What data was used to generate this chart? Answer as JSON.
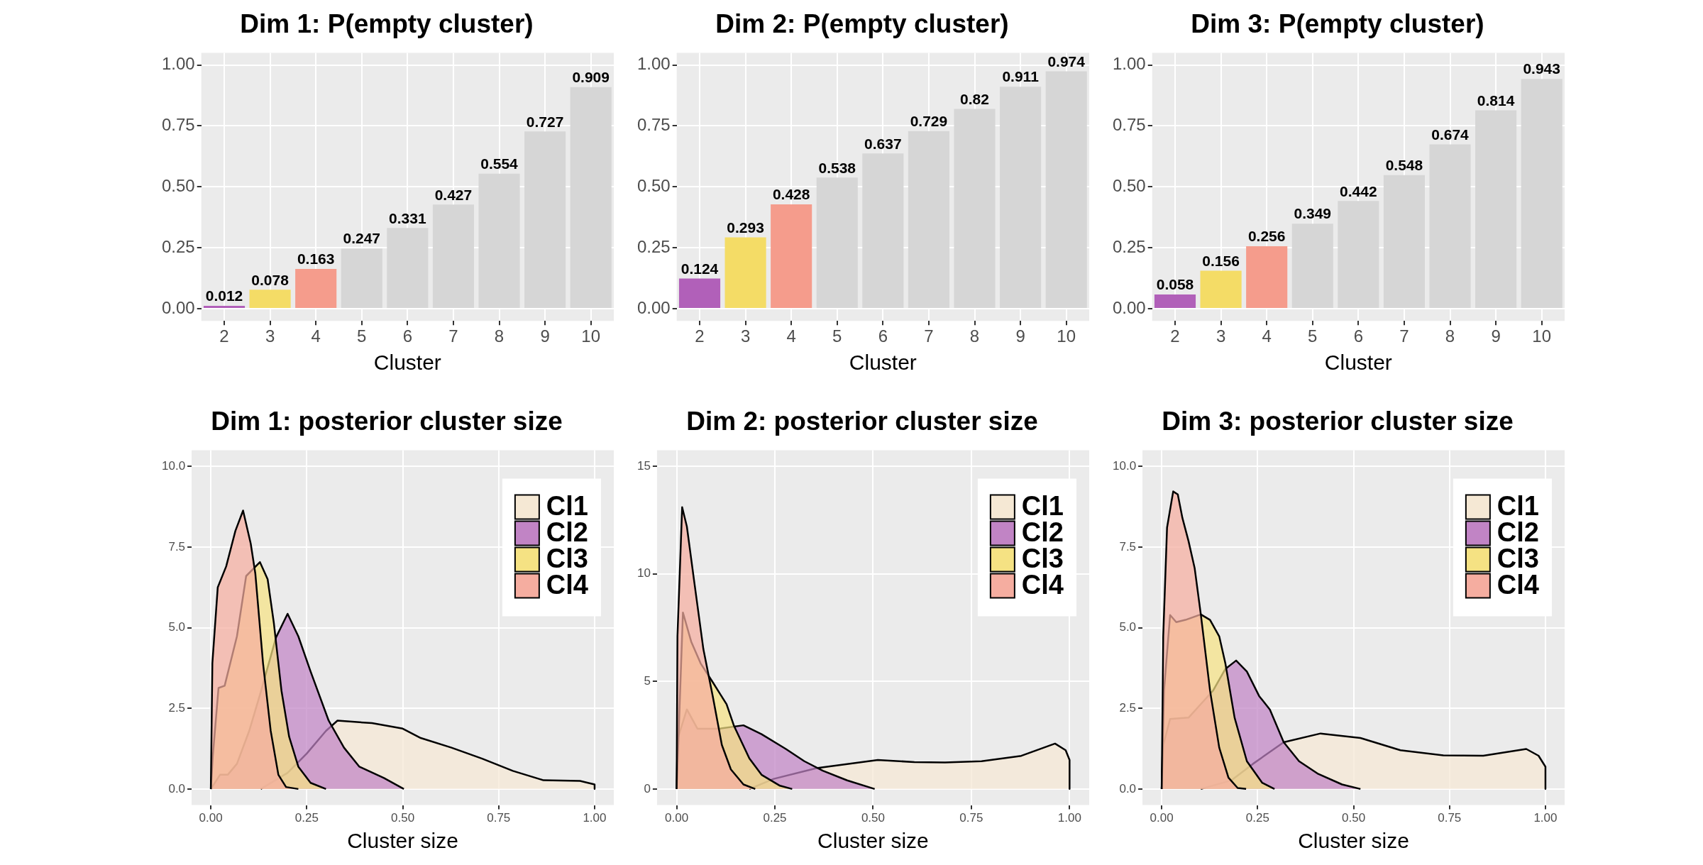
{
  "chart_data": [
    {
      "type": "bar",
      "title": "Dim 1: P(empty cluster)",
      "xlabel": "Cluster",
      "categories": [
        "2",
        "3",
        "4",
        "5",
        "6",
        "7",
        "8",
        "9",
        "10"
      ],
      "values": [
        0.012,
        0.078,
        0.163,
        0.247,
        0.331,
        0.427,
        0.554,
        0.727,
        0.909
      ],
      "colors": [
        "#b160b9",
        "#f4dc66",
        "#f59c8c",
        "#d6d6d6",
        "#d6d6d6",
        "#d6d6d6",
        "#d6d6d6",
        "#d6d6d6",
        "#d6d6d6"
      ],
      "ylim": [
        -0.05,
        1.05
      ],
      "yticks": [
        {
          "value": 0,
          "label": "0.00"
        },
        {
          "value": 0.25,
          "label": "0.25"
        },
        {
          "value": 0.5,
          "label": "0.50"
        },
        {
          "value": 0.75,
          "label": "0.75"
        },
        {
          "value": 1,
          "label": "1.00"
        }
      ],
      "grid": true,
      "data_labels": true
    },
    {
      "type": "bar",
      "title": "Dim 2: P(empty cluster)",
      "xlabel": "Cluster",
      "categories": [
        "2",
        "3",
        "4",
        "5",
        "6",
        "7",
        "8",
        "9",
        "10"
      ],
      "values": [
        0.124,
        0.293,
        0.428,
        0.538,
        0.637,
        0.729,
        0.82,
        0.911,
        0.974
      ],
      "colors": [
        "#b160b9",
        "#f4dc66",
        "#f59c8c",
        "#d6d6d6",
        "#d6d6d6",
        "#d6d6d6",
        "#d6d6d6",
        "#d6d6d6",
        "#d6d6d6"
      ],
      "ylim": [
        -0.05,
        1.05
      ],
      "yticks": [
        {
          "value": 0,
          "label": "0.00"
        },
        {
          "value": 0.25,
          "label": "0.25"
        },
        {
          "value": 0.5,
          "label": "0.50"
        },
        {
          "value": 0.75,
          "label": "0.75"
        },
        {
          "value": 1,
          "label": "1.00"
        }
      ],
      "grid": true,
      "data_labels": true
    },
    {
      "type": "bar",
      "title": "Dim 3: P(empty cluster)",
      "xlabel": "Cluster",
      "categories": [
        "2",
        "3",
        "4",
        "5",
        "6",
        "7",
        "8",
        "9",
        "10"
      ],
      "values": [
        0.058,
        0.156,
        0.256,
        0.349,
        0.442,
        0.548,
        0.674,
        0.814,
        0.943
      ],
      "colors": [
        "#b160b9",
        "#f4dc66",
        "#f59c8c",
        "#d6d6d6",
        "#d6d6d6",
        "#d6d6d6",
        "#d6d6d6",
        "#d6d6d6",
        "#d6d6d6"
      ],
      "ylim": [
        -0.05,
        1.05
      ],
      "yticks": [
        {
          "value": 0,
          "label": "0.00"
        },
        {
          "value": 0.25,
          "label": "0.25"
        },
        {
          "value": 0.5,
          "label": "0.50"
        },
        {
          "value": 0.75,
          "label": "0.75"
        },
        {
          "value": 1,
          "label": "1.00"
        }
      ],
      "grid": true,
      "data_labels": true
    },
    {
      "type": "area",
      "title": "Dim 1: posterior cluster size",
      "xlabel": "Cluster size",
      "xlim": [
        -0.05,
        1.05
      ],
      "xticks": [
        {
          "value": 0,
          "label": "0.00"
        },
        {
          "value": 0.25,
          "label": "0.25"
        },
        {
          "value": 0.5,
          "label": "0.50"
        },
        {
          "value": 0.75,
          "label": "0.75"
        },
        {
          "value": 1,
          "label": "1.00"
        }
      ],
      "ylim": [
        -0.5,
        10.5
      ],
      "yticks": [
        {
          "value": 0,
          "label": "0.0"
        },
        {
          "value": 2.5,
          "label": "2.5"
        },
        {
          "value": 5,
          "label": "5.0"
        },
        {
          "value": 7.5,
          "label": "7.5"
        },
        {
          "value": 10,
          "label": "10.0"
        }
      ],
      "grid": true,
      "legend": "top right",
      "series": [
        {
          "name": "Cl1",
          "color": "#f5e8d4",
          "x": [
            0.13,
            0.2,
            0.25,
            0.3,
            0.33,
            0.42,
            0.5,
            0.547,
            0.627,
            0.707,
            0.787,
            0.867,
            0.962,
            1.0,
            1.0
          ],
          "values": [
            0,
            0.5,
            1.1,
            1.8,
            2.12,
            2.04,
            1.87,
            1.58,
            1.28,
            0.94,
            0.56,
            0.27,
            0.25,
            0.14,
            0
          ]
        },
        {
          "name": "Cl2",
          "color": "#c184c5",
          "x": [
            0,
            0.024,
            0.044,
            0.068,
            0.1,
            0.13,
            0.17,
            0.2,
            0.228,
            0.26,
            0.307,
            0.347,
            0.387,
            0.451,
            0.503
          ],
          "values": [
            0,
            0.44,
            0.44,
            0.78,
            1.8,
            3.0,
            4.7,
            5.43,
            4.73,
            3.64,
            2.12,
            1.28,
            0.69,
            0.34,
            0
          ]
        },
        {
          "name": "Cl3",
          "color": "#f5e283",
          "x": [
            0,
            0.005,
            0.02,
            0.036,
            0.068,
            0.092,
            0.128,
            0.148,
            0.164,
            0.184,
            0.204,
            0.228,
            0.26,
            0.3
          ],
          "values": [
            0,
            1.0,
            3.13,
            3.2,
            4.73,
            6.6,
            7.03,
            6.5,
            5.16,
            3.05,
            1.62,
            0.69,
            0.19,
            0
          ]
        },
        {
          "name": "Cl4",
          "color": "#f5ada0",
          "x": [
            0,
            0.004,
            0.018,
            0.04,
            0.064,
            0.084,
            0.104,
            0.116,
            0.136,
            0.156,
            0.176,
            0.196,
            0.228
          ],
          "values": [
            0,
            3.9,
            6.25,
            6.9,
            8.0,
            8.63,
            7.6,
            6.67,
            3.9,
            1.8,
            0.44,
            0.06,
            0
          ]
        }
      ]
    },
    {
      "type": "area",
      "title": "Dim 2: posterior cluster size",
      "xlabel": "Cluster size",
      "xlim": [
        -0.05,
        1.05
      ],
      "xticks": [
        {
          "value": 0,
          "label": "0.00"
        },
        {
          "value": 0.25,
          "label": "0.25"
        },
        {
          "value": 0.5,
          "label": "0.50"
        },
        {
          "value": 0.75,
          "label": "0.75"
        },
        {
          "value": 1,
          "label": "1.00"
        }
      ],
      "ylim": [
        -0.75,
        15.75
      ],
      "yticks": [
        0,
        5,
        10,
        15
      ],
      "grid": true,
      "legend": "top right",
      "series": [
        {
          "name": "Cl1",
          "color": "#f5e8d4",
          "x": [
            0.185,
            0.247,
            0.356,
            0.434,
            0.512,
            0.605,
            0.683,
            0.776,
            0.877,
            0.963,
            0.99,
            1.0,
            1.0
          ],
          "values": [
            0,
            0.47,
            0.97,
            1.16,
            1.35,
            1.25,
            1.23,
            1.29,
            1.54,
            2.11,
            1.8,
            1.35,
            0
          ]
        },
        {
          "name": "Cl2",
          "color": "#c184c5",
          "x": [
            0,
            0.002,
            0.026,
            0.053,
            0.107,
            0.17,
            0.216,
            0.278,
            0.325,
            0.372,
            0.434,
            0.504
          ],
          "values": [
            0,
            2.3,
            3.7,
            2.8,
            2.8,
            2.96,
            2.55,
            1.86,
            1.29,
            0.85,
            0.4,
            0
          ]
        },
        {
          "name": "Cl3",
          "color": "#f5e283",
          "x": [
            0,
            0.016,
            0.037,
            0.061,
            0.092,
            0.127,
            0.146,
            0.185,
            0.216,
            0.263,
            0.294
          ],
          "values": [
            0,
            8.2,
            6.85,
            5.84,
            4.96,
            3.94,
            2.93,
            1.42,
            0.66,
            0.15,
            0
          ]
        },
        {
          "name": "Cl4",
          "color": "#f5ada0",
          "x": [
            0,
            0.002,
            0.014,
            0.026,
            0.045,
            0.068,
            0.092,
            0.115,
            0.138,
            0.17,
            0.2
          ],
          "values": [
            0,
            7.1,
            13.1,
            12.2,
            9.6,
            6.5,
            4.3,
            2.05,
            0.91,
            0.21,
            0
          ]
        }
      ]
    },
    {
      "type": "area",
      "title": "Dim 3: posterior cluster size",
      "xlabel": "Cluster size",
      "xlim": [
        -0.05,
        1.05
      ],
      "xticks": [
        {
          "value": 0,
          "label": "0.00"
        },
        {
          "value": 0.25,
          "label": "0.25"
        },
        {
          "value": 0.5,
          "label": "0.50"
        },
        {
          "value": 0.75,
          "label": "0.75"
        },
        {
          "value": 1,
          "label": "1.00"
        }
      ],
      "ylim": [
        -0.5,
        10.5
      ],
      "yticks": [
        {
          "value": 0,
          "label": "0.0"
        },
        {
          "value": 2.5,
          "label": "2.5"
        },
        {
          "value": 5,
          "label": "5.0"
        },
        {
          "value": 7.5,
          "label": "7.5"
        },
        {
          "value": 10,
          "label": "10.0"
        }
      ],
      "grid": true,
      "legend": "top right",
      "series": [
        {
          "name": "Cl1",
          "color": "#f5e8d4",
          "x": [
            0.102,
            0.182,
            0.238,
            0.318,
            0.414,
            0.518,
            0.622,
            0.734,
            0.838,
            0.95,
            0.982,
            1.0,
            1.0
          ],
          "values": [
            0,
            0.27,
            0.78,
            1.45,
            1.72,
            1.58,
            1.2,
            1.04,
            1.03,
            1.24,
            1.03,
            0.69,
            0
          ]
        },
        {
          "name": "Cl2",
          "color": "#c184c5",
          "x": [
            0,
            0.004,
            0.022,
            0.07,
            0.102,
            0.134,
            0.166,
            0.194,
            0.222,
            0.254,
            0.282,
            0.318,
            0.358,
            0.406,
            0.47,
            0.518
          ],
          "values": [
            0,
            1.36,
            2.17,
            2.21,
            2.63,
            3.05,
            3.72,
            3.98,
            3.64,
            2.88,
            2.46,
            1.45,
            0.86,
            0.48,
            0.14,
            0
          ]
        },
        {
          "name": "Cl3",
          "color": "#f5e283",
          "x": [
            0,
            0.006,
            0.022,
            0.038,
            0.062,
            0.102,
            0.126,
            0.15,
            0.166,
            0.19,
            0.222,
            0.262,
            0.294
          ],
          "values": [
            0,
            3.05,
            5.39,
            5.17,
            5.24,
            5.41,
            5.24,
            4.73,
            3.89,
            2.21,
            0.86,
            0.19,
            0
          ]
        },
        {
          "name": "Cl4",
          "color": "#f5ada0",
          "x": [
            0,
            0.004,
            0.014,
            0.03,
            0.042,
            0.054,
            0.07,
            0.086,
            0.102,
            0.126,
            0.15,
            0.174,
            0.198,
            0.22
          ],
          "values": [
            0,
            4.73,
            8.1,
            9.22,
            9.13,
            8.4,
            7.68,
            6.84,
            5.41,
            3.05,
            1.28,
            0.35,
            0.03,
            0
          ]
        }
      ]
    }
  ]
}
